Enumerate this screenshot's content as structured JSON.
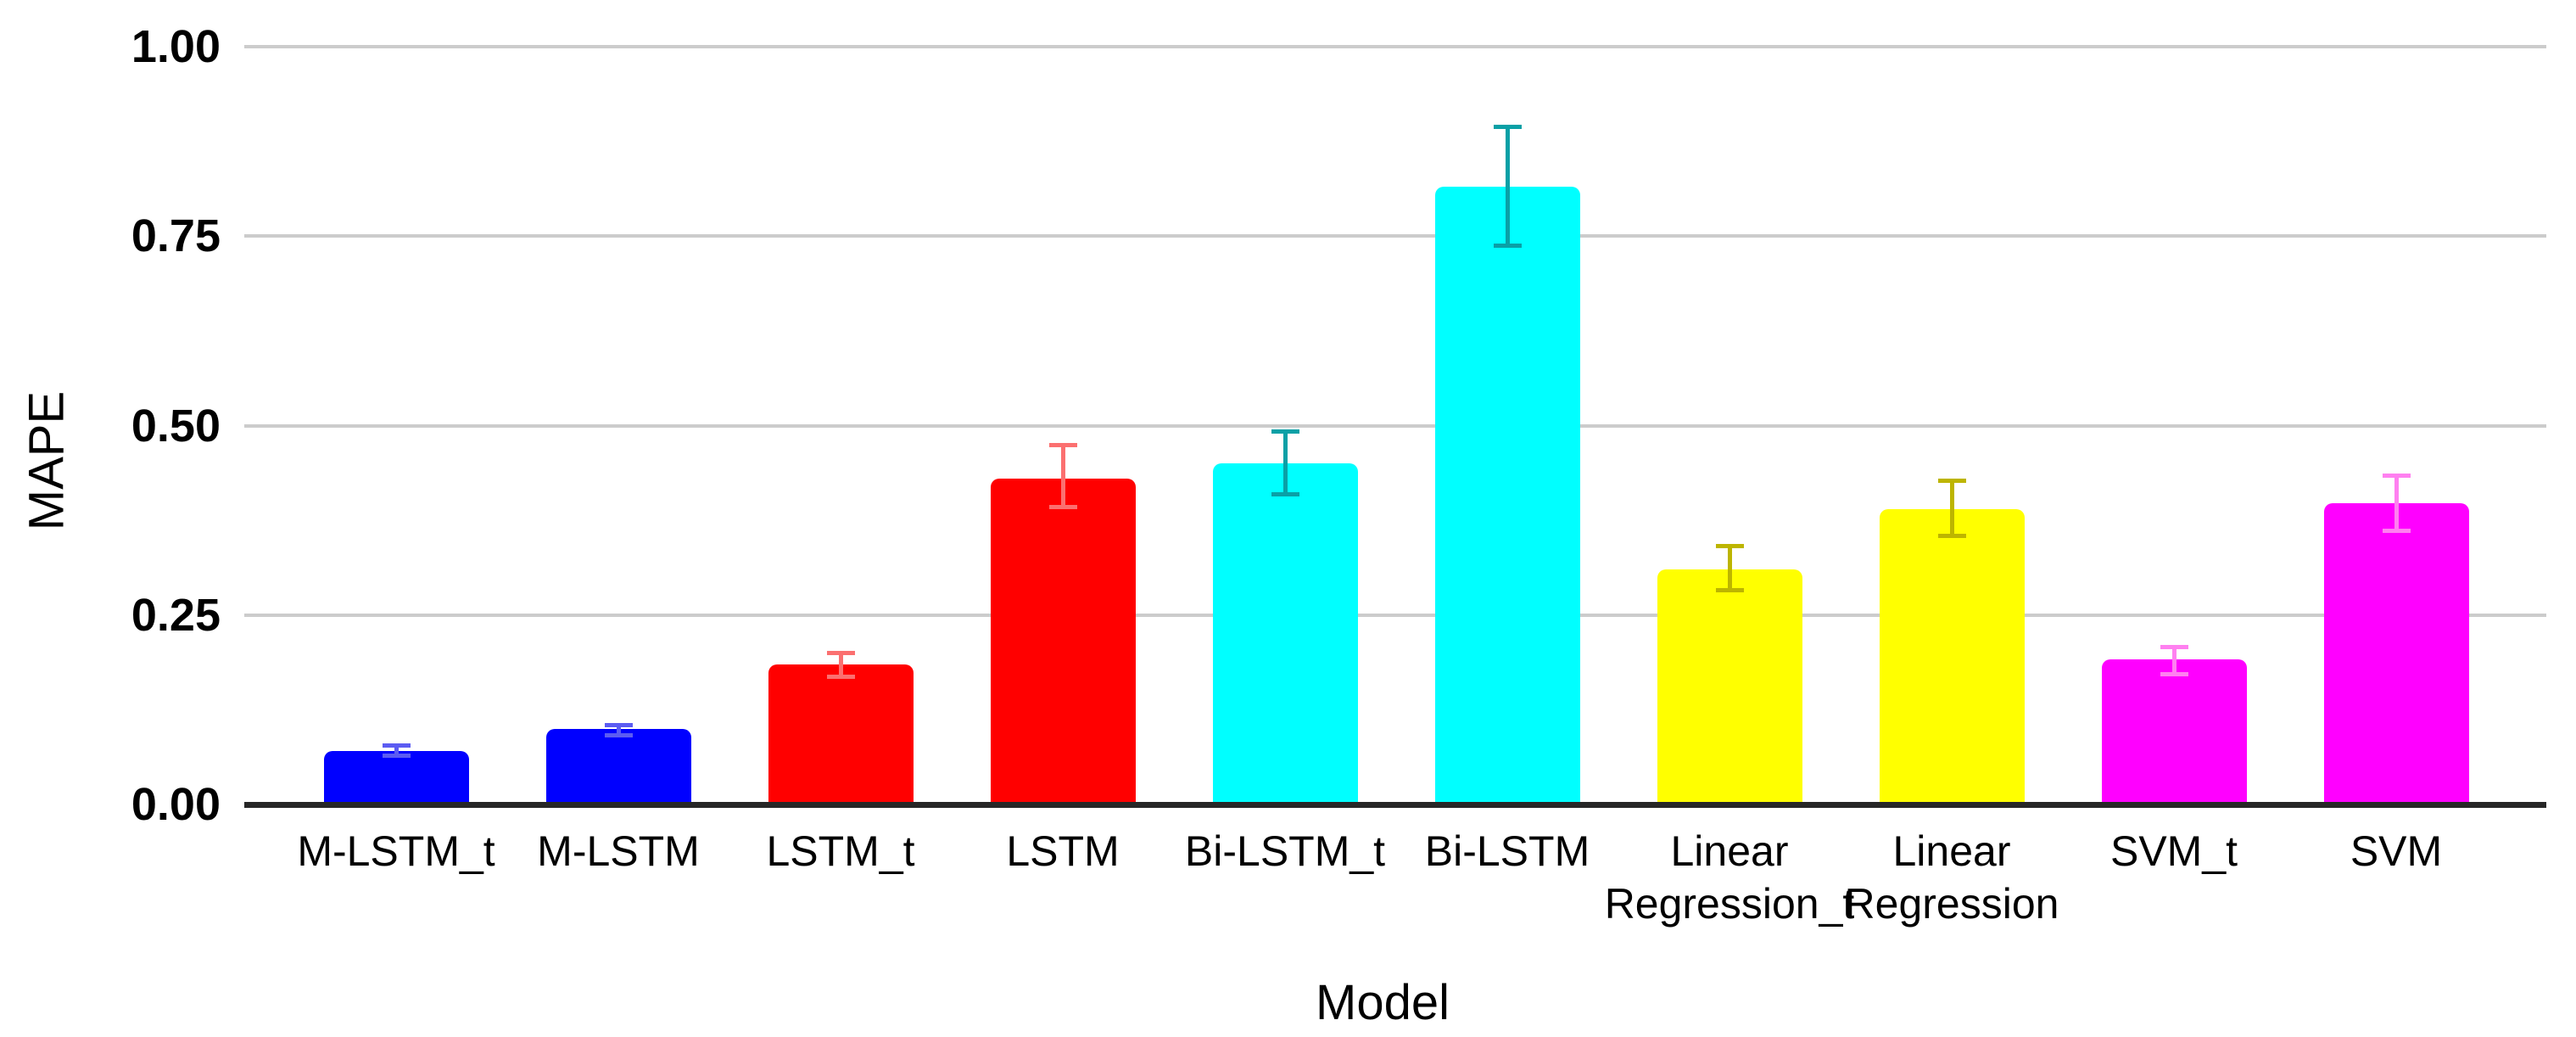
{
  "chart_data": {
    "type": "bar",
    "title": "",
    "xlabel": "Model",
    "ylabel": "MAPE",
    "ylim": [
      0,
      1.0
    ],
    "yticks": [
      {
        "label": "1.00",
        "value": 1.0
      },
      {
        "label": "0.75",
        "value": 0.75
      },
      {
        "label": "0.50",
        "value": 0.5
      },
      {
        "label": "0.25",
        "value": 0.25
      },
      {
        "label": "0.00",
        "value": 0.0
      }
    ],
    "grid": "horizontal-major-only",
    "legend_position": "none",
    "background_color": "#FFFFFF",
    "gridline_color": "#CCCCCC",
    "axis_line_color": "#262626",
    "text_color": "#000000",
    "categories": [
      "M-LSTM_t",
      "M-LSTM",
      "LSTM_t",
      "LSTM",
      "Bi-LSTM_t",
      "Bi-LSTM",
      "Linear Regression_t",
      "Linear Regression",
      "SVM_t",
      "SVM"
    ],
    "category_label_lines": [
      [
        "M-LSTM_t"
      ],
      [
        "M-LSTM"
      ],
      [
        "LSTM_t"
      ],
      [
        "LSTM"
      ],
      [
        "Bi-LSTM_t"
      ],
      [
        "Bi-LSTM"
      ],
      [
        "Linear",
        "Regression_t"
      ],
      [
        "Linear",
        "Regression"
      ],
      [
        "SVM_t"
      ],
      [
        "SVM"
      ]
    ],
    "series": [
      {
        "name": "MAPE",
        "values": [
          0.07,
          0.1,
          0.185,
          0.43,
          0.45,
          0.815,
          0.31,
          0.39,
          0.192,
          0.397
        ],
        "error_low": [
          0.062,
          0.088,
          0.166,
          0.39,
          0.407,
          0.735,
          0.28,
          0.352,
          0.169,
          0.358
        ],
        "error_high": [
          0.081,
          0.108,
          0.203,
          0.477,
          0.495,
          0.897,
          0.344,
          0.43,
          0.211,
          0.437
        ]
      }
    ],
    "bar_colors": [
      "#0000FF",
      "#0000FF",
      "#FF0000",
      "#FF0000",
      "#00FFFF",
      "#00FFFF",
      "#FFFF00",
      "#FFFF00",
      "#FF00FF",
      "#FF00FF"
    ],
    "error_bar_colors": [
      "#5C5CF2",
      "#5C5CF2",
      "#FB7070",
      "#FB7070",
      "#0AA0A6",
      "#0AA0A6",
      "#BDB500",
      "#BDB500",
      "#FF80F0",
      "#FF80F0"
    ]
  }
}
